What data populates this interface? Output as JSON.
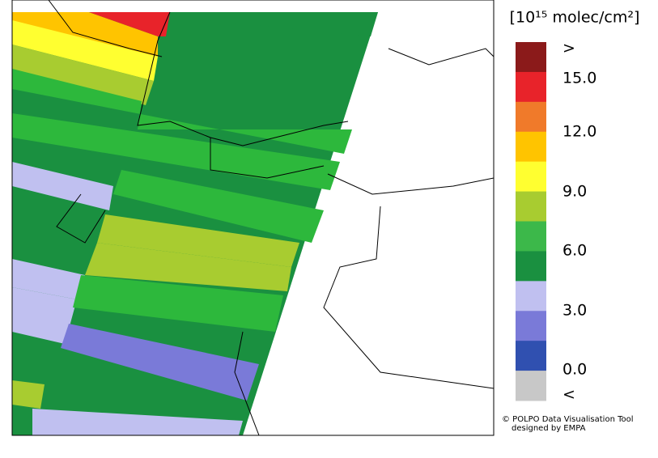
{
  "legend": {
    "unit_label": "[10¹⁵ molec/cm²]",
    "colors": [
      "#8b1a1a",
      "#e8232a",
      "#f07a2a",
      "#ffc400",
      "#ffff30",
      "#a8cc30",
      "#3cb84a",
      "#1a9040",
      "#c0c0f0",
      "#7a7ad8",
      "#3050b0",
      "#c8c8c8"
    ],
    "labels": [
      ">",
      "15.0",
      "12.0",
      "9.0",
      "6.0",
      "3.0",
      "0.0",
      "<"
    ]
  },
  "credits": [
    "© POLPO Data Visualisation Tool",
    "designed by EMPA"
  ]
}
